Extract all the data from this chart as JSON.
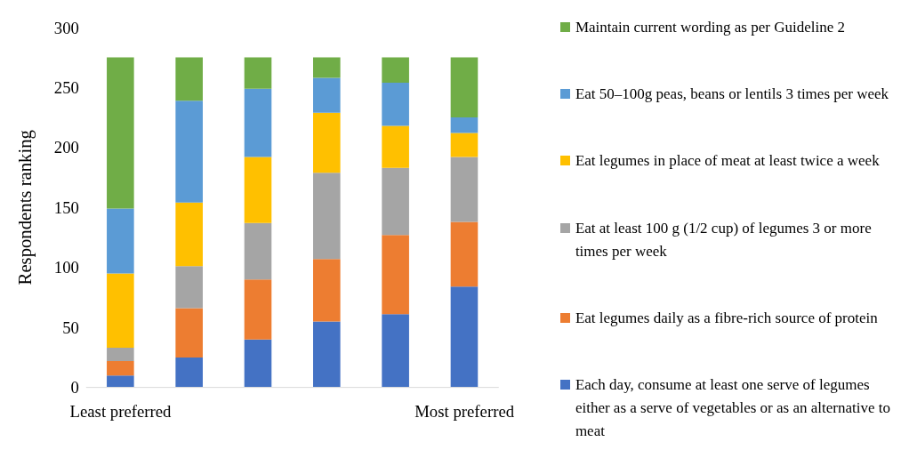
{
  "chart_data": {
    "type": "bar",
    "stacked": true,
    "ylabel": "Respondents ranking",
    "categories": [
      "Least preferred",
      null,
      null,
      null,
      null,
      "Most preferred"
    ],
    "ylim": [
      0,
      300
    ],
    "yticks": [
      0,
      50,
      100,
      150,
      200,
      250,
      300
    ],
    "grid": false,
    "legend": "right",
    "series": [
      {
        "name": "Each day, consume at least one serve of legumes either as a serve of vegetables or as an alternative to meat",
        "color": "#4472c4",
        "values": [
          10,
          25,
          40,
          55,
          61,
          84
        ]
      },
      {
        "name": "Eat legumes daily as a fibre-rich source of protein",
        "color": "#ed7d31",
        "values": [
          12,
          41,
          50,
          52,
          66,
          54
        ]
      },
      {
        "name": "Eat at least 100 g (1/2 cup) of legumes 3 or more times per week",
        "color": "#a5a5a5",
        "values": [
          11,
          35,
          47,
          72,
          56,
          54
        ]
      },
      {
        "name": "Eat legumes in place of meat at least twice a week",
        "color": "#ffc000",
        "values": [
          62,
          53,
          55,
          50,
          35,
          20
        ]
      },
      {
        "name": "Eat 50–100g peas, beans or lentils 3 times per week",
        "color": "#5b9bd5",
        "values": [
          54,
          85,
          57,
          29,
          36,
          13
        ]
      },
      {
        "name": "Maintain current wording as per Guideline 2",
        "color": "#70ad47",
        "values": [
          126,
          36,
          26,
          17,
          21,
          50
        ]
      }
    ]
  }
}
